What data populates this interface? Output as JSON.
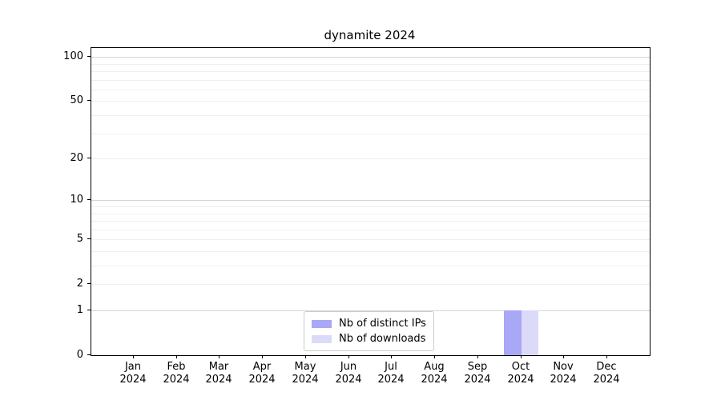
{
  "chart_data": {
    "type": "bar",
    "title": "dynamite 2024",
    "categories": [
      "Jan",
      "Feb",
      "Mar",
      "Apr",
      "May",
      "Jun",
      "Jul",
      "Aug",
      "Sep",
      "Oct",
      "Nov",
      "Dec"
    ],
    "x_tick_year_line": "2024",
    "series": [
      {
        "name": "Nb of distinct IPs",
        "color": "#a8a8f6",
        "values": [
          0,
          0,
          0,
          0,
          0,
          0,
          0,
          0,
          0,
          1,
          0,
          0
        ]
      },
      {
        "name": "Nb of downloads",
        "color": "#dbdbf9",
        "values": [
          0,
          0,
          0,
          0,
          0,
          0,
          0,
          0,
          0,
          1,
          0,
          0
        ]
      }
    ],
    "y_axis": {
      "scale": "log1p",
      "tick_values": [
        0,
        1,
        2,
        5,
        10,
        20,
        50,
        100
      ],
      "tick_labels": [
        "0",
        "1",
        "2",
        "5",
        "10",
        "20",
        "50",
        "100"
      ],
      "max": 115,
      "major_gridlines": [
        1,
        10,
        100
      ],
      "minor_gridlines": [
        2,
        3,
        4,
        5,
        6,
        7,
        8,
        9,
        20,
        30,
        40,
        50,
        60,
        70,
        80,
        90
      ]
    },
    "legend": {
      "position": "lower center"
    },
    "colors": {
      "major_grid": "#d6d6d6",
      "minor_grid": "#efefef",
      "spine": "#000000",
      "text": "#000000"
    }
  }
}
